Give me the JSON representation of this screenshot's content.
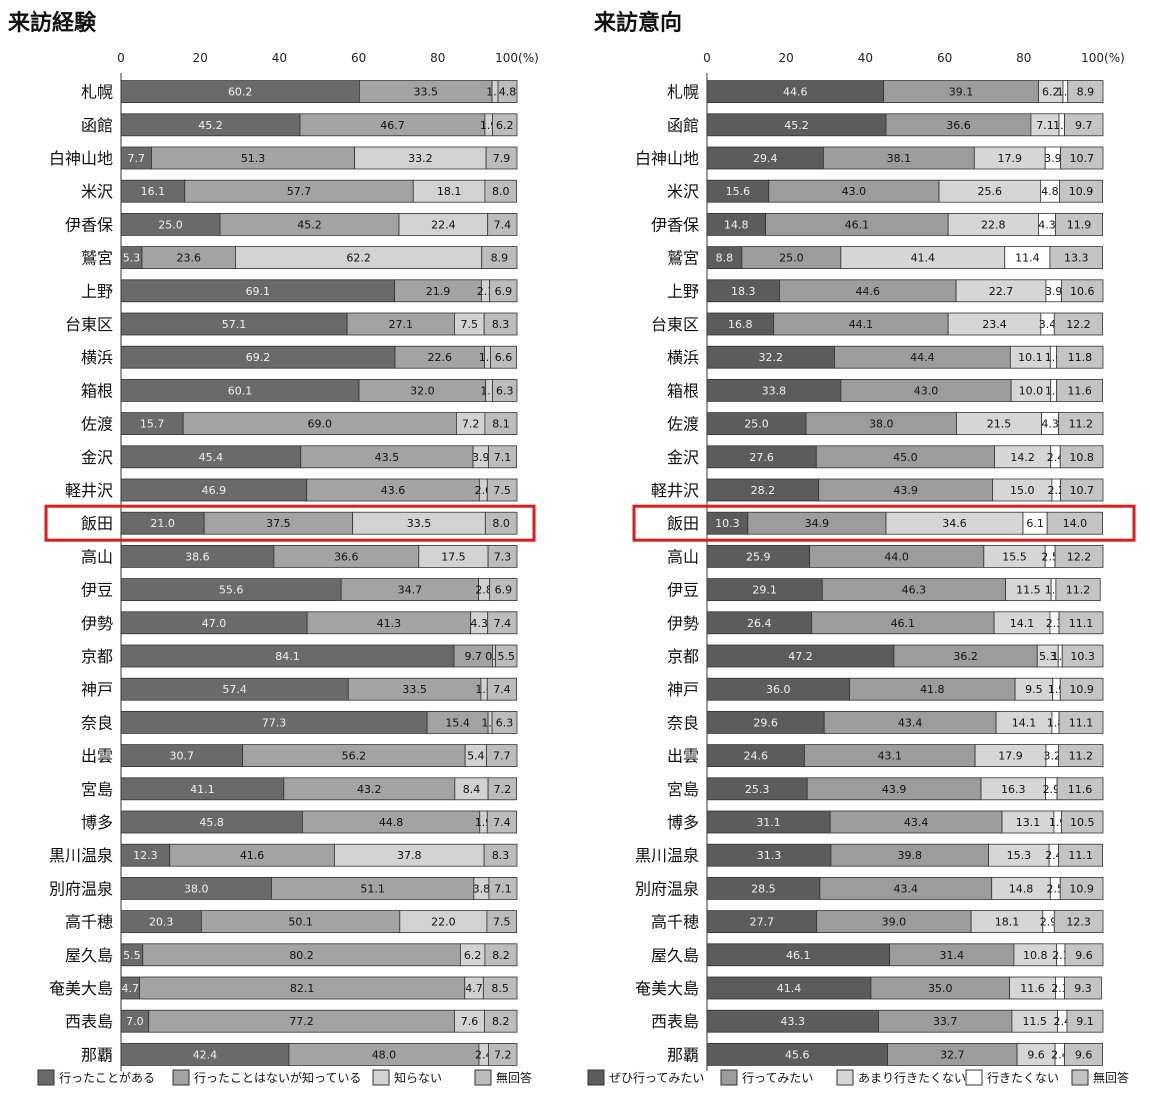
{
  "chart_data": [
    {
      "type": "bar",
      "orientation": "horizontal",
      "stacked": true,
      "title": "来訪経験",
      "xlim": [
        0,
        100
      ],
      "x_ticks": [
        "0",
        "20",
        "40",
        "60",
        "80",
        "100"
      ],
      "x_unit": "(%)",
      "legend_position": "bottom",
      "highlighted_category": "飯田",
      "categories": [
        "札幌",
        "函館",
        "白神山地",
        "米沢",
        "伊香保",
        "鷲宮",
        "上野",
        "台東区",
        "横浜",
        "箱根",
        "佐渡",
        "金沢",
        "軽井沢",
        "飯田",
        "高山",
        "伊豆",
        "伊勢",
        "京都",
        "神戸",
        "奈良",
        "出雲",
        "宮島",
        "博多",
        "黒川温泉",
        "別府温泉",
        "高千穂",
        "屋久島",
        "奄美大島",
        "西表島",
        "那覇"
      ],
      "series": [
        {
          "name": "行ったことがある",
          "color": "#6a6a6a",
          "values": [
            60.2,
            45.2,
            7.7,
            16.1,
            25.0,
            5.3,
            69.1,
            57.1,
            69.2,
            60.1,
            15.7,
            45.4,
            46.9,
            21.0,
            38.6,
            55.6,
            47.0,
            84.1,
            57.4,
            77.3,
            30.7,
            41.1,
            45.8,
            12.3,
            38.0,
            20.3,
            5.5,
            4.7,
            7.0,
            42.4
          ]
        },
        {
          "name": "行ったことはないが知っている",
          "color": "#a3a3a3",
          "values": [
            33.5,
            46.7,
            51.3,
            57.7,
            45.2,
            23.6,
            21.9,
            27.1,
            22.6,
            32.0,
            69.0,
            43.5,
            43.6,
            37.5,
            36.6,
            34.7,
            41.3,
            9.7,
            33.5,
            15.4,
            56.2,
            43.2,
            44.8,
            41.6,
            51.1,
            50.1,
            80.2,
            82.1,
            77.2,
            48.0
          ]
        },
        {
          "name": "知らない",
          "color": "#d2d2d2",
          "values": [
            1.5,
            1.9,
            33.2,
            18.1,
            22.4,
            62.2,
            2.1,
            7.5,
            1.5,
            1.7,
            7.2,
            3.9,
            2.0,
            33.5,
            17.5,
            2.8,
            4.3,
            0.8,
            1.6,
            1.0,
            5.4,
            8.4,
            1.9,
            37.8,
            3.8,
            22.0,
            6.2,
            4.7,
            7.6,
            2.4
          ]
        },
        {
          "name": "無回答",
          "color": "#bcbcbc",
          "values": [
            4.8,
            6.2,
            7.9,
            8.0,
            7.4,
            8.9,
            6.9,
            8.3,
            6.6,
            6.3,
            8.1,
            7.1,
            7.5,
            8.0,
            7.3,
            6.9,
            7.4,
            5.5,
            7.4,
            6.3,
            7.7,
            7.2,
            7.4,
            8.3,
            7.1,
            7.5,
            8.2,
            8.5,
            8.2,
            7.2
          ]
        }
      ]
    },
    {
      "type": "bar",
      "orientation": "horizontal",
      "stacked": true,
      "title": "来訪意向",
      "xlim": [
        0,
        100
      ],
      "x_ticks": [
        "0",
        "20",
        "40",
        "60",
        "80",
        "100"
      ],
      "x_unit": "(%)",
      "legend_position": "bottom",
      "highlighted_category": "飯田",
      "categories": [
        "札幌",
        "函館",
        "白神山地",
        "米沢",
        "伊香保",
        "鷲宮",
        "上野",
        "台東区",
        "横浜",
        "箱根",
        "佐渡",
        "金沢",
        "軽井沢",
        "飯田",
        "高山",
        "伊豆",
        "伊勢",
        "京都",
        "神戸",
        "奈良",
        "出雲",
        "宮島",
        "博多",
        "黒川温泉",
        "別府温泉",
        "高千穂",
        "屋久島",
        "奄美大島",
        "西表島",
        "那覇"
      ],
      "series": [
        {
          "name": "ぜひ行ってみたい",
          "color": "#5c5c5c",
          "values": [
            44.6,
            45.2,
            29.4,
            15.6,
            14.8,
            8.8,
            18.3,
            16.8,
            32.2,
            33.8,
            25.0,
            27.6,
            28.2,
            10.3,
            25.9,
            29.1,
            26.4,
            47.2,
            36.0,
            29.6,
            24.6,
            25.3,
            31.1,
            31.3,
            28.5,
            27.7,
            46.1,
            41.4,
            43.3,
            45.6
          ]
        },
        {
          "name": "行ってみたい",
          "color": "#9c9c9c",
          "values": [
            39.1,
            36.6,
            38.1,
            43.0,
            46.1,
            25.0,
            44.6,
            44.1,
            44.4,
            43.0,
            38.0,
            45.0,
            43.9,
            34.9,
            44.0,
            46.3,
            46.1,
            36.2,
            41.8,
            43.4,
            43.1,
            43.9,
            43.4,
            39.8,
            43.4,
            39.0,
            31.4,
            35.0,
            33.7,
            32.7
          ]
        },
        {
          "name": "あまり行きたくない",
          "color": "#d6d6d6",
          "values": [
            6.2,
            7.1,
            17.9,
            25.6,
            22.8,
            41.4,
            22.7,
            23.4,
            10.1,
            10.0,
            21.5,
            14.2,
            15.0,
            34.6,
            15.5,
            11.5,
            14.1,
            5.3,
            9.5,
            14.1,
            17.9,
            16.3,
            13.1,
            15.3,
            14.8,
            18.1,
            10.8,
            11.6,
            11.5,
            9.6
          ]
        },
        {
          "name": "行きたくない",
          "color": "#ffffff",
          "values": [
            1.2,
            1.4,
            3.9,
            4.8,
            4.3,
            11.4,
            3.9,
            3.4,
            1.6,
            1.5,
            4.3,
            2.4,
            2.2,
            6.1,
            2.5,
            1.2,
            2.3,
            1.0,
            1.9,
            1.8,
            3.2,
            2.9,
            1.9,
            2.4,
            2.5,
            2.9,
            2.1,
            2.3,
            2.4,
            2.4
          ]
        },
        {
          "name": "無回答",
          "color": "#c4c4c4",
          "values": [
            8.9,
            9.7,
            10.7,
            10.9,
            11.9,
            13.3,
            10.6,
            12.2,
            11.8,
            11.6,
            11.2,
            10.8,
            10.7,
            14.0,
            12.2,
            11.2,
            11.1,
            10.3,
            10.9,
            11.1,
            11.2,
            11.6,
            10.5,
            11.1,
            10.9,
            12.3,
            9.6,
            9.3,
            9.1,
            9.6
          ]
        }
      ]
    }
  ]
}
